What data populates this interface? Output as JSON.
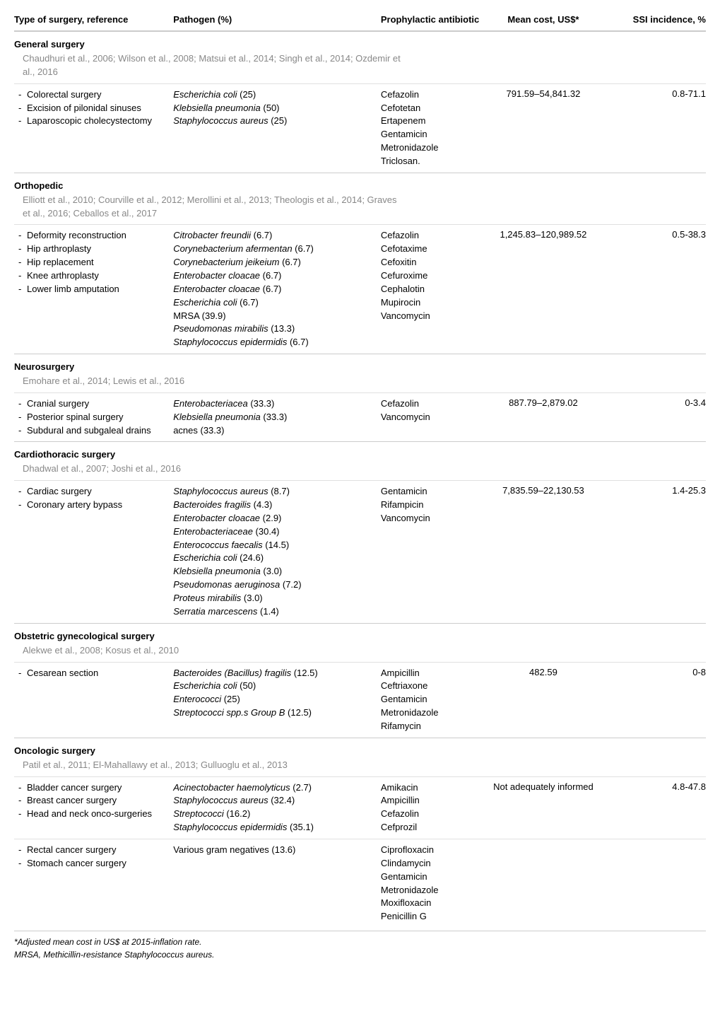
{
  "headers": {
    "c1": "Type of surgery, reference",
    "c2": "Pathogen (%)",
    "c3": "Prophylactic antibiotic",
    "c4": "Mean cost, US$*",
    "c5": "SSI incidence, %"
  },
  "sections": [
    {
      "title": "General surgery",
      "refs": "Chaudhuri et al., 2006; Wilson et al., 2008; Matsui et al., 2014; Singh et al., 2014; Ozdemir et al., 2016",
      "rows": [
        {
          "surgeries": [
            "Colorectal surgery",
            "Excision of pilonidal sinuses",
            "Laparoscopic cholecystectomy"
          ],
          "pathogens": [
            {
              "name": "Escherichia coli",
              "pct": "(25)"
            },
            {
              "name": "Klebsiella pneumonia",
              "pct": "(50)"
            },
            {
              "name": "Staphylococcus aureus",
              "pct": "(25)"
            }
          ],
          "antibiotics": [
            "Cefazolin",
            "Cefotetan",
            "Ertapenem",
            "Gentamicin",
            "Metronidazole",
            "Triclosan."
          ],
          "cost": "791.59–54,841.32",
          "ssi": "0.8-71.1"
        }
      ]
    },
    {
      "title": "Orthopedic",
      "refs": "Elliott et al., 2010; Courville et al., 2012; Merollini et al., 2013; Theologis et al., 2014; Graves et al., 2016; Ceballos et al., 2017",
      "rows": [
        {
          "surgeries": [
            "Deformity reconstruction",
            "Hip arthroplasty",
            "Hip replacement",
            "Knee arthroplasty",
            "Lower limb amputation"
          ],
          "pathogens": [
            {
              "name": "Citrobacter freundii",
              "pct": "(6.7)"
            },
            {
              "name": "Corynebacterium afermentan",
              "pct": "(6.7)"
            },
            {
              "name": "Corynebacterium jeikeium",
              "pct": "(6.7)"
            },
            {
              "name": "Enterobacter cloacae",
              "pct": "(6.7)"
            },
            {
              "name": "Enterobacter cloacae",
              "pct": "(6.7)"
            },
            {
              "name": "Escherichia coli",
              "pct": "(6.7)"
            },
            {
              "name": "MRSA",
              "pct": "(39.9)",
              "noitalic": true
            },
            {
              "name": "Pseudomonas mirabilis",
              "pct": "(13.3)"
            },
            {
              "name": "Staphylococcus epidermidis",
              "pct": "(6.7)"
            }
          ],
          "antibiotics": [
            "Cefazolin",
            "Cefotaxime",
            "Cefoxitin",
            "Cefuroxime",
            "Cephalotin",
            "Mupirocin",
            "Vancomycin"
          ],
          "cost": "1,245.83–120,989.52",
          "ssi": "0.5-38.3"
        }
      ]
    },
    {
      "title": "Neurosurgery",
      "refs": "Emohare et al., 2014; Lewis et al., 2016",
      "rows": [
        {
          "surgeries": [
            "Cranial surgery",
            "Posterior spinal surgery",
            "Subdural and subgaleal drains"
          ],
          "pathogens": [
            {
              "name": "Enterobacteriacea",
              "pct": "(33.3)"
            },
            {
              "name": "Klebsiella pneumonia",
              "pct": "(33.3)"
            },
            {
              "name": "acnes",
              "pct": "(33.3)",
              "noitalic": true
            }
          ],
          "antibiotics": [
            "Cefazolin",
            "Vancomycin"
          ],
          "cost": "887.79–2,879.02",
          "ssi": "0-3.4"
        }
      ]
    },
    {
      "title": "Cardiothoracic surgery",
      "refs": "Dhadwal et al., 2007; Joshi et al., 2016",
      "rows": [
        {
          "surgeries": [
            "Cardiac surgery",
            "Coronary artery bypass"
          ],
          "pathogens": [
            {
              "name": "Staphylococcus aureus",
              "pct": "(8.7)"
            },
            {
              "name": "Bacteroides fragilis",
              "pct": "(4.3)"
            },
            {
              "name": "Enterobacter cloacae",
              "pct": "(2.9)"
            },
            {
              "name": "Enterobacteriaceae",
              "pct": "(30.4)"
            },
            {
              "name": "Enterococcus faecalis",
              "pct": "(14.5)"
            },
            {
              "name": "Escherichia coli",
              "pct": "(24.6)"
            },
            {
              "name": "Klebsiella pneumonia",
              "pct": "(3.0)"
            },
            {
              "name": "Pseudomonas aeruginosa",
              "pct": "(7.2)"
            },
            {
              "name": "Proteus mirabilis",
              "pct": "(3.0)"
            },
            {
              "name": "Serratia marcescens",
              "pct": "(1.4)"
            }
          ],
          "antibiotics": [
            "Gentamicin",
            "Rifampicin",
            "Vancomycin"
          ],
          "cost": "7,835.59–22,130.53",
          "ssi": "1.4-25.3"
        }
      ]
    },
    {
      "title": "Obstetric gynecological surgery",
      "refs": "Alekwe et al., 2008; Kosus et al., 2010",
      "rows": [
        {
          "surgeries": [
            "Cesarean section"
          ],
          "pathogens": [
            {
              "name": "Bacteroides (Bacillus) fragilis",
              "pct": "(12.5)"
            },
            {
              "name": "Escherichia coli",
              "pct": "(50)"
            },
            {
              "name": "Enterococci",
              "pct": "(25)"
            },
            {
              "name": "Streptococci spp.s Group B",
              "pct": "(12.5)"
            }
          ],
          "antibiotics": [
            "Ampicillin",
            "Ceftriaxone",
            "Gentamicin",
            "Metronidazole",
            "Rifamycin"
          ],
          "cost": "482.59",
          "ssi": "0-8"
        }
      ]
    },
    {
      "title": "Oncologic surgery",
      "refs": "Patil et al., 2011; El-Mahallawy et al., 2013; Gulluoglu et al., 2013",
      "rows": [
        {
          "surgeries": [
            "Bladder cancer surgery",
            "Breast cancer surgery",
            "Head and neck onco-surgeries"
          ],
          "pathogens": [
            {
              "name": "Acinectobacter haemolyticus",
              "pct": "(2.7)"
            },
            {
              "name": "Staphylococcus aureus",
              "pct": "(32.4)"
            },
            {
              "name": "Streptococci",
              "pct": "(16.2)"
            },
            {
              "name": "Staphylococcus epidermidis",
              "pct": "(35.1)"
            }
          ],
          "antibiotics": [
            "Amikacin",
            "Ampicillin",
            "Cefazolin",
            "Cefprozil"
          ],
          "cost": "Not adequately informed",
          "ssi": "4.8-47.8"
        },
        {
          "surgeries": [
            "Rectal cancer surgery",
            "Stomach cancer surgery"
          ],
          "pathogens": [
            {
              "name": "Various gram negatives",
              "pct": "(13.6)",
              "noitalic": true
            }
          ],
          "antibiotics": [
            "Ciprofloxacin",
            "Clindamycin",
            "Gentamicin",
            "Metronidazole",
            "Moxifloxacin",
            "Penicillin G"
          ],
          "cost": "",
          "ssi": ""
        }
      ]
    }
  ],
  "footnotes": [
    "*Adjusted mean cost in US$ at 2015-inflation rate.",
    "MRSA, Methicillin-resistance Staphylococcus aureus."
  ]
}
